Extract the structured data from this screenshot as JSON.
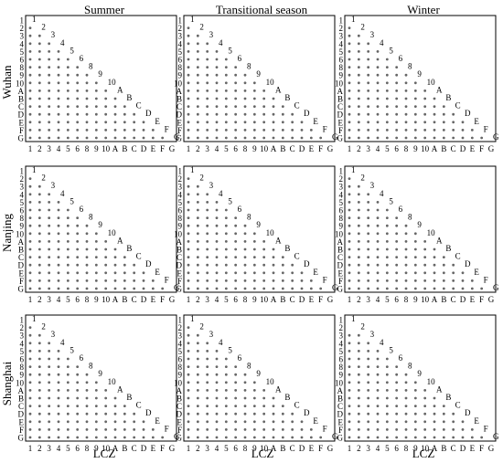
{
  "chart_data": {
    "type": "scatter",
    "layout": "3x3 lower-triangular pairwise significance matrices",
    "lcz_labels": [
      "1",
      "2",
      "3",
      "4",
      "5",
      "6",
      "8",
      "9",
      "10",
      "A",
      "B",
      "C",
      "D",
      "E",
      "F",
      "G"
    ],
    "columns": [
      "Summer",
      "Transitional season",
      "Winter"
    ],
    "rows": [
      "Wuhan",
      "Nanjing",
      "Shanghai"
    ],
    "xlabel": "LCZ",
    "dot_color": "#666666",
    "missing_pairs": [
      [],
      [],
      [],
      [],
      [],
      [],
      [],
      [],
      [
        [
          1,
          0
        ]
      ]
    ]
  }
}
